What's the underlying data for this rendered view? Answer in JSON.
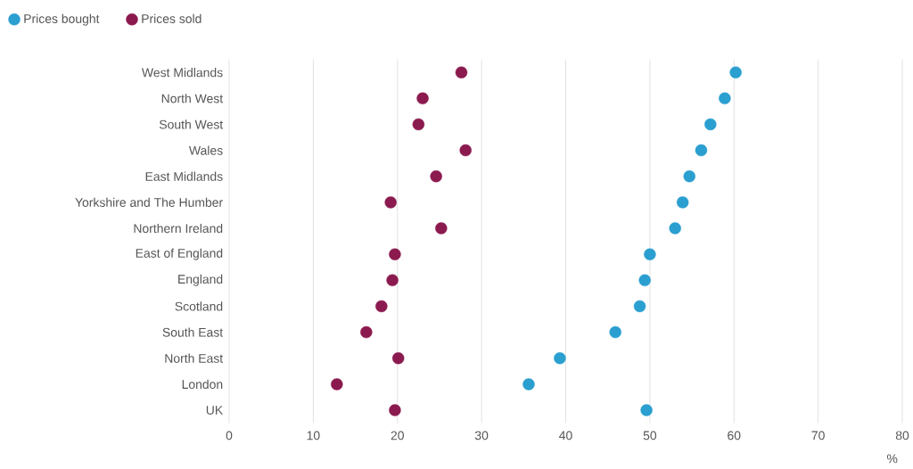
{
  "chart_data": {
    "type": "scatter",
    "xlabel": "%",
    "categories": [
      "West Midlands",
      "North West",
      "South West",
      "Wales",
      "East Midlands",
      "Yorkshire and The Humber",
      "Northern Ireland",
      "East of England",
      "England",
      "Scotland",
      "South East",
      "North East",
      "London",
      "UK"
    ],
    "orientation": "horizontal",
    "series": [
      {
        "name": "Prices bought",
        "color": "#2a9fd0",
        "values": [
          60.2,
          58.9,
          57.2,
          56.1,
          54.7,
          53.9,
          53.0,
          50.0,
          49.4,
          48.8,
          45.9,
          39.3,
          35.6,
          49.6
        ]
      },
      {
        "name": "Prices sold",
        "color": "#8b1a4f",
        "values": [
          27.6,
          23.0,
          22.5,
          28.1,
          24.6,
          19.2,
          25.2,
          19.7,
          19.4,
          18.1,
          16.3,
          20.1,
          12.8,
          19.7
        ]
      }
    ],
    "xlim": [
      0,
      80
    ],
    "xticks": [
      0,
      10,
      20,
      30,
      40,
      50,
      60,
      70,
      80
    ],
    "grid": "x",
    "legend": "top left",
    "marker": "circle"
  }
}
